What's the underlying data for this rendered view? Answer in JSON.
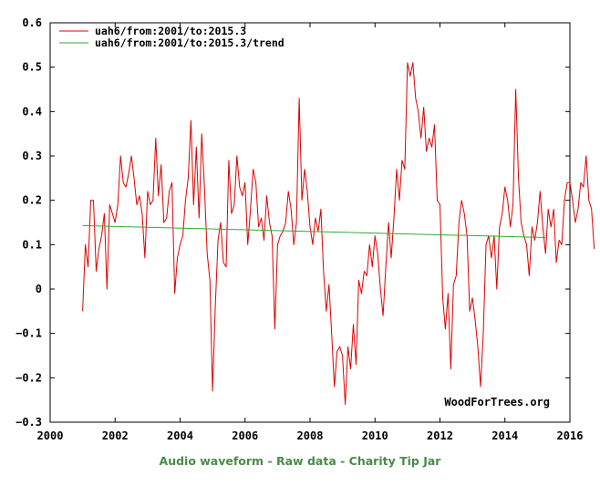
{
  "chart_data": {
    "type": "line",
    "title": "",
    "xlabel": "",
    "ylabel": "",
    "xlim": [
      2000,
      2016
    ],
    "ylim": [
      -0.3,
      0.6
    ],
    "x_ticks": [
      2000,
      2002,
      2004,
      2006,
      2008,
      2010,
      2012,
      2014,
      2016
    ],
    "x_tick_labels": [
      "2000",
      "2002",
      "2004",
      "2006",
      "2008",
      "2010",
      "2012",
      "2014",
      "2016"
    ],
    "y_ticks": [
      -0.3,
      -0.2,
      -0.1,
      0,
      0.1,
      0.2,
      0.3,
      0.4,
      0.5,
      0.6
    ],
    "y_tick_labels": [
      "−0.3",
      "−0.2",
      "−0.1",
      "0",
      "0.1",
      "0.2",
      "0.3",
      "0.4",
      "0.5",
      "0.6"
    ],
    "grid": false,
    "legend_position": "top-left",
    "series": [
      {
        "name": "uah6/from:2001/to:2015.3",
        "color": "#dd0000",
        "x_start": 2001.0,
        "x_step": 0.08333,
        "values": [
          -0.05,
          0.1,
          0.05,
          0.2,
          0.2,
          0.04,
          0.09,
          0.12,
          0.17,
          0.0,
          0.19,
          0.17,
          0.15,
          0.19,
          0.3,
          0.24,
          0.23,
          0.26,
          0.3,
          0.25,
          0.19,
          0.21,
          0.17,
          0.07,
          0.22,
          0.19,
          0.2,
          0.34,
          0.21,
          0.28,
          0.15,
          0.16,
          0.22,
          0.24,
          -0.01,
          0.07,
          0.1,
          0.12,
          0.2,
          0.25,
          0.38,
          0.19,
          0.32,
          0.16,
          0.35,
          0.23,
          0.08,
          0.02,
          -0.23,
          -0.04,
          0.11,
          0.15,
          0.06,
          0.05,
          0.29,
          0.17,
          0.19,
          0.3,
          0.23,
          0.21,
          0.24,
          0.1,
          0.18,
          0.27,
          0.24,
          0.14,
          0.16,
          0.11,
          0.21,
          0.15,
          0.12,
          -0.09,
          0.1,
          0.12,
          0.13,
          0.15,
          0.22,
          0.18,
          0.1,
          0.15,
          0.43,
          0.2,
          0.27,
          0.22,
          0.14,
          0.1,
          0.16,
          0.13,
          0.18,
          0.04,
          -0.05,
          0.01,
          -0.1,
          -0.22,
          -0.14,
          -0.13,
          -0.15,
          -0.26,
          -0.13,
          -0.18,
          -0.08,
          -0.17,
          0.02,
          -0.01,
          0.04,
          0.03,
          0.1,
          0.05,
          0.12,
          0.08,
          0.0,
          -0.06,
          0.05,
          0.15,
          0.07,
          0.16,
          0.27,
          0.2,
          0.29,
          0.27,
          0.51,
          0.48,
          0.51,
          0.43,
          0.4,
          0.34,
          0.41,
          0.31,
          0.34,
          0.32,
          0.37,
          0.2,
          0.19,
          -0.02,
          -0.09,
          -0.01,
          -0.18,
          0.01,
          0.03,
          0.15,
          0.2,
          0.17,
          0.12,
          -0.05,
          -0.02,
          -0.07,
          -0.13,
          -0.22,
          -0.1,
          0.1,
          0.12,
          0.07,
          0.12,
          0.0,
          0.14,
          0.17,
          0.23,
          0.2,
          0.14,
          0.19,
          0.45,
          0.25,
          0.15,
          0.12,
          0.1,
          0.03,
          0.14,
          0.11,
          0.15,
          0.22,
          0.14,
          0.08,
          0.18,
          0.14,
          0.18,
          0.06,
          0.11,
          0.1,
          0.2,
          0.24,
          0.24,
          0.2,
          0.15,
          0.18,
          0.24,
          0.23,
          0.3,
          0.2,
          0.18,
          0.09
        ]
      },
      {
        "name": "uah6/from:2001/to:2015.3/trend",
        "color": "#33aa33",
        "x": [
          2001.0,
          2015.25
        ],
        "values": [
          0.143,
          0.116
        ]
      }
    ],
    "annotations": [
      "WoodForTrees.org"
    ]
  },
  "footer": {
    "links": [
      "Audio waveform",
      "Raw data",
      "Charity Tip Jar"
    ],
    "separator": " - ",
    "color": "#4a8a4a"
  }
}
